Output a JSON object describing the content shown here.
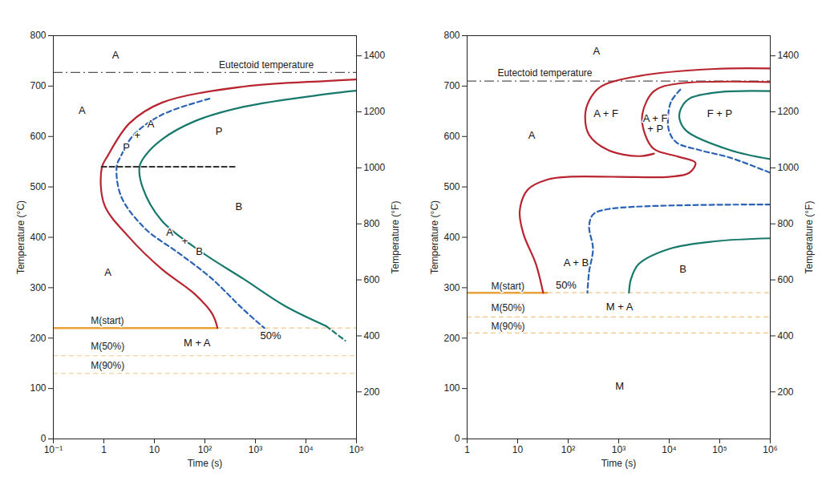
{
  "chart_data": [
    {
      "type": "line",
      "log": "x",
      "grid": false,
      "x_label": "Time (s)",
      "y_label": "Temperature (°C)",
      "y2_label": "Temperature (°F)",
      "xlim": [
        0.1,
        100000
      ],
      "xticks": [
        {
          "value": 0.1,
          "label": "10⁻¹"
        },
        1,
        10,
        {
          "value": 100,
          "label": "10²"
        },
        {
          "value": 1000,
          "label": "10³"
        },
        {
          "value": 10000,
          "label": "10⁴"
        },
        {
          "value": 100000,
          "label": "10⁵"
        }
      ],
      "ylim": [
        0,
        800
      ],
      "yticks": [
        0,
        100,
        200,
        300,
        400,
        500,
        600,
        700,
        800
      ],
      "y2lim": [
        32,
        1472
      ],
      "y2ticks": [
        200,
        400,
        600,
        800,
        1000,
        1200,
        1400
      ],
      "series": [
        {
          "color": "#b8242f",
          "line_style": "solid",
          "x": [
            100000,
            25000,
            590,
            14,
            3.2,
            1.2,
            0.91,
            1.02,
            3.1,
            14,
            62,
            140,
            178
          ],
          "values": [
            713,
            710,
            699,
            667,
            626,
            562,
            538,
            465,
            401,
            337,
            288,
            248,
            220
          ]
        },
        {
          "color": "#17786c",
          "line_style": "solid",
          "x": [
            100000,
            25000,
            590,
            62,
            14,
            6.6,
            5.1,
            5.9,
            14,
            91,
            590,
            3800,
            25000
          ],
          "values": [
            691,
            684,
            659,
            630,
            594,
            562,
            541,
            498,
            433,
            369,
            317,
            264,
            224
          ]
        },
        {
          "color": "#17786c",
          "line_style": "dashed",
          "x": [
            25000,
            60000
          ],
          "values": [
            224,
            195
          ]
        },
        {
          "color": "#2b62b3",
          "line_style": "dashed",
          "x": [
            123,
            14,
            3.8,
            2.2,
            1.8,
            2.2,
            6.6,
            30,
            130,
            590,
            1500
          ],
          "values": [
            675,
            643,
            602,
            562,
            541,
            481,
            417,
            369,
            320,
            256,
            220
          ]
        },
        {
          "color": "#333333",
          "line_style": "dashed",
          "x": [
            0.9,
            400
          ],
          "values": [
            540,
            540
          ]
        }
      ],
      "reference_lines": [
        {
          "label": "Eutectoid temperature",
          "y": 727,
          "color": "#555555",
          "line_style": "dashdot",
          "label_x": 190,
          "label_y": 742
        },
        {
          "label": "M(start)",
          "y": 220,
          "color": "#e8a23a",
          "line_style": "solid",
          "x_to": 178,
          "label_x": 0.55,
          "label_y": 234
        },
        {
          "label": "M(50%)",
          "y": 165,
          "color": "#e8a23a",
          "line_style": "dashed",
          "label_x": 0.55,
          "label_y": 183
        },
        {
          "label": "M(90%)",
          "y": 130,
          "color": "#e8a23a",
          "line_style": "dashed",
          "label_x": 0.55,
          "label_y": 146
        }
      ],
      "annotations": [
        {
          "text": "A",
          "x": 1.7,
          "y": 762
        },
        {
          "text": "A",
          "x": 0.37,
          "y": 652
        },
        {
          "text": "A",
          "x": 1.2,
          "y": 330
        },
        {
          "text": "P",
          "x": 2.8,
          "y": 578
        },
        {
          "text": "+",
          "x": 4.6,
          "y": 602
        },
        {
          "text": "A",
          "x": 8.5,
          "y": 625
        },
        {
          "text": "P",
          "x": 190,
          "y": 610
        },
        {
          "text": "B",
          "x": 470,
          "y": 460
        },
        {
          "text": "A",
          "x": 20,
          "y": 410
        },
        {
          "text": "+",
          "x": 40,
          "y": 393
        },
        {
          "text": "B",
          "x": 78,
          "y": 372
        },
        {
          "text": "M + A",
          "x": 70,
          "y": 190
        },
        {
          "text": "50%",
          "x": 2000,
          "y": 205
        }
      ]
    },
    {
      "type": "line",
      "log": "x",
      "grid": false,
      "x_label": "Time (s)",
      "y_label": "Temperature (°C)",
      "y2_label": "Temperature (°F)",
      "xlim": [
        1,
        1000000
      ],
      "xticks": [
        1,
        10,
        {
          "value": 100,
          "label": "10²"
        },
        {
          "value": 1000,
          "label": "10³"
        },
        {
          "value": 10000,
          "label": "10⁴"
        },
        {
          "value": 100000,
          "label": "10⁵"
        },
        {
          "value": 1000000,
          "label": "10⁶"
        }
      ],
      "ylim": [
        0,
        800
      ],
      "yticks": [
        0,
        100,
        200,
        300,
        400,
        500,
        600,
        700,
        800
      ],
      "y2lim": [
        32,
        1472
      ],
      "y2ticks": [
        200,
        400,
        600,
        800,
        1000,
        1200,
        1400
      ],
      "series": [
        {
          "color": "#b8242f",
          "line_style": "solid",
          "x": [
            1000000,
            80000,
            2500,
            430,
            260,
            217,
            260,
            620,
            2500,
            5000
          ],
          "values": [
            735,
            734,
            720,
            698,
            671,
            641,
            603,
            573,
            561,
            566
          ]
        },
        {
          "color": "#b8242f",
          "line_style": "solid",
          "x": [
            1000000,
            15000,
            5000,
            2950,
            3300,
            5000,
            15000,
            33000,
            25000,
            10000,
            1000,
            100,
            40,
            16,
            11,
            13,
            23,
            32
          ],
          "values": [
            708,
            705,
            690,
            645,
            605,
            575,
            560,
            548,
            528,
            520,
            520,
            520,
            515,
            495,
            452,
            407,
            347,
            290
          ]
        },
        {
          "color": "#17786c",
          "line_style": "solid",
          "x": [
            1000000,
            100000,
            25000,
            17000,
            16000,
            22000,
            160000,
            1000000
          ],
          "values": [
            690,
            688,
            675,
            655,
            635,
            611,
            573,
            555
          ]
        },
        {
          "color": "#2b62b3",
          "line_style": "dashed",
          "x": [
            16600,
            11000,
            9500,
            10000,
            14000,
            40000,
            160000,
            1000000
          ],
          "values": [
            693,
            670,
            640,
            610,
            588,
            573,
            558,
            528
          ]
        },
        {
          "color": "#2b62b3",
          "line_style": "dashed",
          "x": [
            1000000,
            620,
            310,
            260,
            310,
            260,
            240
          ],
          "values": [
            465,
            456,
            445,
            422,
            377,
            332,
            290
          ]
        },
        {
          "color": "#17786c",
          "line_style": "solid",
          "x": [
            1000000,
            80000,
            10000,
            2500,
            1750,
            1600
          ],
          "values": [
            398,
            392,
            377,
            347,
            317,
            290
          ]
        }
      ],
      "reference_lines": [
        {
          "label": "Eutectoid temperature",
          "y": 710,
          "color": "#555555",
          "line_style": "dashdot",
          "label_x": 4,
          "label_y": 726
        },
        {
          "label": "M(start)",
          "y": 290,
          "color": "#e8a23a",
          "line_style": "solid",
          "x_to": 40,
          "label_x": 3,
          "label_y": 303
        },
        {
          "label": "M(50%)",
          "y": 242,
          "color": "#e8a23a",
          "line_style": "dashed",
          "label_x": 3,
          "label_y": 259
        },
        {
          "label": "M(90%)",
          "y": 210,
          "color": "#e8a23a",
          "line_style": "dashed",
          "label_x": 3,
          "label_y": 224
        }
      ],
      "annotations": [
        {
          "text": "A",
          "x": 365,
          "y": 770
        },
        {
          "text": "A",
          "x": 19,
          "y": 603
        },
        {
          "text": "A + F",
          "x": 560,
          "y": 645
        },
        {
          "text": "A + F\n+ P",
          "x": 5300,
          "y": 625
        },
        {
          "text": "F + P",
          "x": 100000,
          "y": 645
        },
        {
          "text": "A + B",
          "x": 144,
          "y": 350
        },
        {
          "text": "50%",
          "x": 91,
          "y": 305
        },
        {
          "text": "B",
          "x": 18600,
          "y": 337
        },
        {
          "text": "M + A",
          "x": 1040,
          "y": 262
        },
        {
          "text": "M",
          "x": 1040,
          "y": 105
        }
      ]
    }
  ]
}
